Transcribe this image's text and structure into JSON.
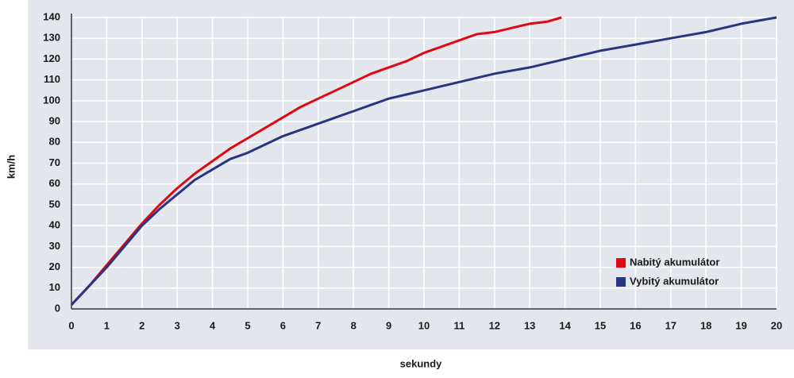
{
  "chart_data": {
    "type": "line",
    "x_label": "sekundy",
    "y_label": "km/h",
    "xlim": [
      0,
      20
    ],
    "ylim": [
      0,
      140
    ],
    "xticks": [
      0,
      1,
      2,
      3,
      4,
      5,
      6,
      7,
      8,
      9,
      10,
      11,
      12,
      13,
      14,
      15,
      16,
      17,
      18,
      19,
      20
    ],
    "yticks": [
      0,
      10,
      20,
      30,
      40,
      50,
      60,
      70,
      80,
      90,
      100,
      110,
      120,
      130,
      140
    ],
    "grid": true,
    "legend": "lower right",
    "series": [
      {
        "name": "Nabitý akumulátor",
        "color": "#e30613",
        "x": [
          0,
          0.5,
          1,
          1.5,
          2,
          2.5,
          3,
          3.5,
          4,
          4.5,
          5,
          5.5,
          6,
          6.5,
          7,
          7.5,
          8,
          8.5,
          9,
          9.5,
          10,
          10.5,
          11,
          11.5,
          12,
          12.5,
          13,
          13.5,
          13.9
        ],
        "values": [
          2,
          11,
          21,
          31,
          41,
          50,
          58,
          65,
          71,
          77,
          82,
          87,
          92,
          97,
          101,
          105,
          109,
          113,
          116,
          119,
          123,
          126,
          129,
          132,
          133,
          135,
          137,
          138,
          140
        ]
      },
      {
        "name": "Vybitý akumulátor",
        "color": "#273582",
        "x": [
          0,
          0.5,
          1,
          1.5,
          2,
          2.5,
          3,
          3.5,
          4,
          4.5,
          5,
          5.5,
          6,
          6.5,
          7,
          7.5,
          8,
          8.5,
          9,
          9.5,
          10,
          11,
          12,
          13,
          14,
          15,
          16,
          17,
          18,
          19,
          20
        ],
        "values": [
          2,
          11,
          20,
          30,
          40,
          48,
          55,
          62,
          67,
          72,
          75,
          79,
          83,
          86,
          89,
          92,
          95,
          98,
          101,
          103,
          105,
          109,
          113,
          116,
          120,
          124,
          127,
          130,
          133,
          137,
          140
        ]
      }
    ]
  }
}
